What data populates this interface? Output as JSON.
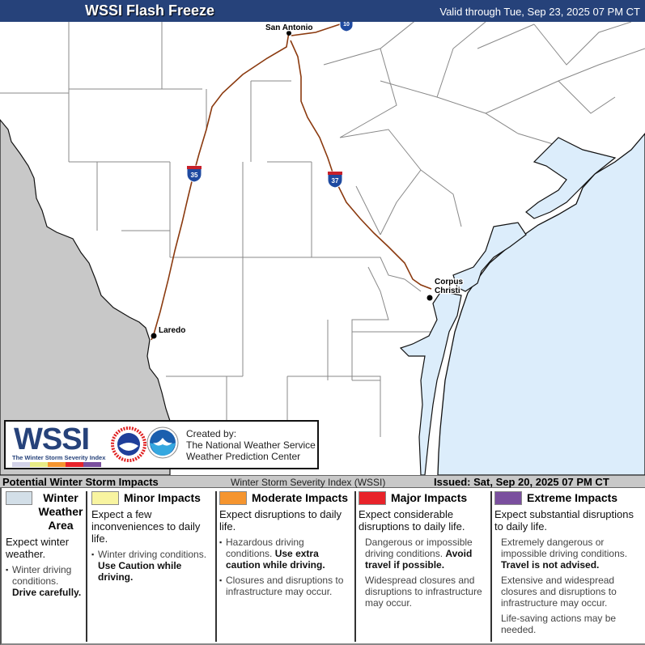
{
  "header": {
    "title": "WSSI Flash Freeze",
    "valid": "Valid through Tue, Sep 23, 2025 07 PM CT",
    "background": "#26427a"
  },
  "map": {
    "land_color": "#ffffff",
    "mexico_color": "#c8c8c8",
    "water_color": "#dcedfb",
    "highway_color": "#8b3a0f",
    "cities": [
      {
        "name": "San Antonio"
      },
      {
        "name": "Laredo"
      },
      {
        "name": "Corpus Christi",
        "line1": "Corpus",
        "line2": "Christi"
      }
    ],
    "highways": [
      {
        "shield": "35"
      },
      {
        "shield": "37"
      },
      {
        "shield": "10"
      }
    ]
  },
  "logo": {
    "wssi": "WSSI",
    "wssi_sub": "The Winter Storm Severity Index",
    "created_by": "Created by:",
    "org1": "The National Weather Service",
    "org2": "Weather Prediction Center"
  },
  "legend_bar": {
    "title": "Potential Winter Storm Impacts",
    "index_name": "Winter Storm Severity Index (WSSI)",
    "issued": "Issued: Sat, Sep 20, 2025 07 PM CT"
  },
  "legend": [
    {
      "color": "#d3dfe8",
      "label": "Winter Weather Area",
      "expect": "Expect winter weather.",
      "items": [
        {
          "text": "Winter driving conditions.",
          "bold": "Drive carefully."
        }
      ]
    },
    {
      "color": "#f8f4a0",
      "label": "Minor Impacts",
      "expect": "Expect a few inconveniences to daily life.",
      "items": [
        {
          "text": "Winter driving conditions.",
          "bold": "Use Caution while driving."
        }
      ]
    },
    {
      "color": "#f5952f",
      "label": "Moderate Impacts",
      "expect": "Expect disruptions to daily life.",
      "items": [
        {
          "text": "Hazardous driving conditions.",
          "bold": "Use extra caution while driving."
        },
        {
          "text": "Closures and disruptions to infrastructure may occur.",
          "bold": ""
        }
      ]
    },
    {
      "color": "#e8232a",
      "label": "Major Impacts",
      "expect": "Expect considerable disruptions to daily life.",
      "items": [
        {
          "text": "Dangerous or impossible driving conditions.",
          "bold": "Avoid travel if possible."
        },
        {
          "text": "Widespread closures and disruptions to infrastructure may occur.",
          "bold": ""
        }
      ]
    },
    {
      "color": "#7a4f9e",
      "label": "Extreme Impacts",
      "expect": "Expect substantial disruptions to daily life.",
      "items": [
        {
          "text": "Extremely dangerous or impossible driving conditions.",
          "bold": "Travel is not advised."
        },
        {
          "text": "Extensive and widespread closures and disruptions to infrastructure may occur.",
          "bold": ""
        },
        {
          "text": "Life-saving actions may be needed.",
          "bold": ""
        }
      ]
    }
  ]
}
